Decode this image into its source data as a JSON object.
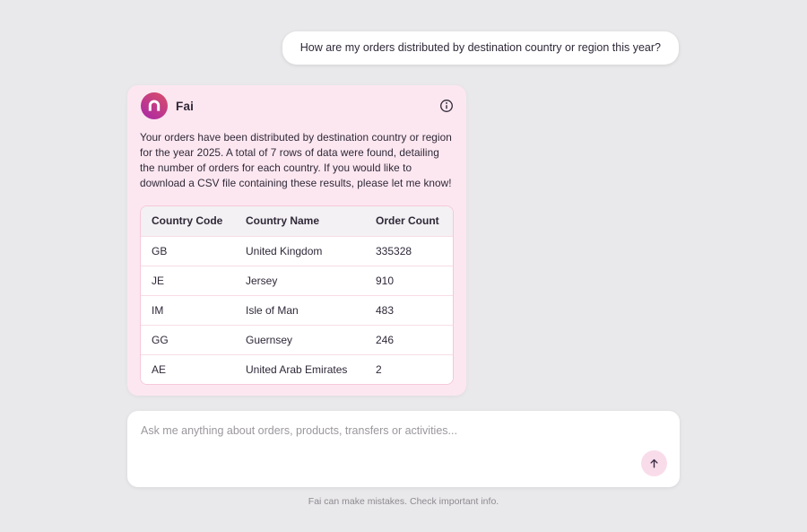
{
  "user_message": {
    "text": "How are my orders distributed by destination country or region this year?"
  },
  "assistant": {
    "name": "Fai",
    "message": "Your orders have been distributed by destination country or region for the year 2025. A total of 7 rows of data were found, detailing the number of orders for each country. If you would like to download a CSV file containing these results, please let me know!",
    "table": {
      "columns": [
        "Country Code",
        "Country Name",
        "Order Count"
      ],
      "rows": [
        [
          "GB",
          "United Kingdom",
          "335328"
        ],
        [
          "JE",
          "Jersey",
          "910"
        ],
        [
          "IM",
          "Isle of Man",
          "483"
        ],
        [
          "GG",
          "Guernsey",
          "246"
        ],
        [
          "AE",
          "United Arab Emirates",
          "2"
        ]
      ]
    }
  },
  "composer": {
    "placeholder": "Ask me anything about orders, products, transfers or activities...",
    "send_icon": "arrow-up-icon"
  },
  "footer": {
    "disclaimer": "Fai can make mistakes. Check important info."
  },
  "icons": {
    "logo": "arch-icon",
    "info": "info-icon"
  },
  "colors": {
    "page-bg": "#e9e8ea",
    "bubble-bg": "#ffffff",
    "text-dark": "#2f2838",
    "card-bg": "#fce7f0",
    "table-border": "#f6c8da",
    "row-divider": "#f8dde7",
    "header-bg": "#f3f1f3",
    "logo-grad-start": "#d64a6e",
    "logo-grad-end": "#ad2ba3",
    "send-btn-bg": "#f9dcea",
    "placeholder": "#9b979d",
    "muted": "#8d8a90",
    "white": "#ffffff"
  }
}
